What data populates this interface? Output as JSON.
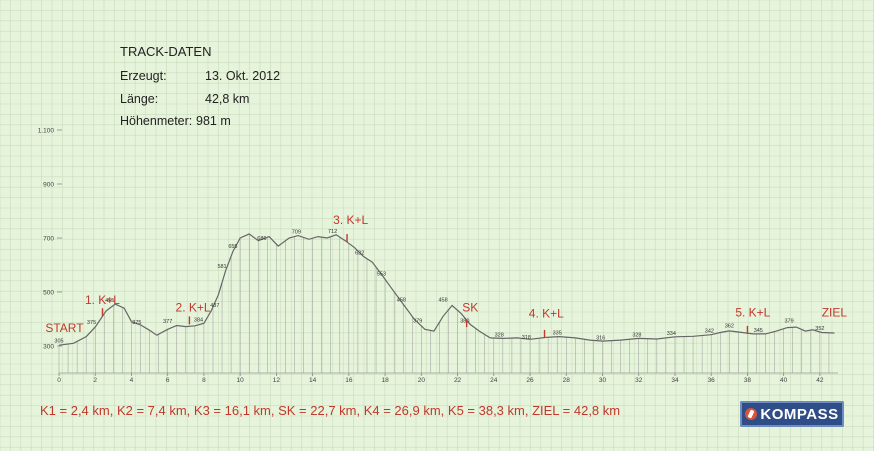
{
  "track_info": {
    "title": "TRACK-DATEN",
    "rows": [
      {
        "label": "Erzeugt:",
        "value": "13. Okt. 2012"
      },
      {
        "label": "Länge:",
        "value": "42,8 km"
      },
      {
        "label": "Höhenmeter:",
        "value": "981 m"
      }
    ]
  },
  "footer_text": "K1 = 2,4 km,   K2 = 7,4 km,   K3 = 16,1 km,   SK = 22,7 km,   K4 = 26,9 km,   K5 = 38,3 km,   ZIEL = 42,8 km",
  "logo_text": "KOMPASS",
  "colors": {
    "background": "#e6f4dc",
    "grid": "#c9dcbc",
    "profile": "#666666",
    "fill_lines": "#999999",
    "markers": "#c0392b"
  },
  "chart_data": {
    "type": "area",
    "x_unit": "km",
    "xlim": [
      0,
      43
    ],
    "ylim": [
      200,
      1100
    ],
    "y_ticks": [
      300,
      500,
      700,
      900,
      1100
    ],
    "y_tick_labels": [
      "300",
      "500",
      "700",
      "900",
      "1.100"
    ],
    "x_ticks": [
      0,
      2,
      4,
      6,
      8,
      10,
      12,
      14,
      16,
      18,
      20,
      22,
      24,
      26,
      28,
      30,
      32,
      34,
      36,
      38,
      40,
      42
    ],
    "profile": [
      {
        "x": 0,
        "y": 303
      },
      {
        "x": 0.8,
        "y": 310
      },
      {
        "x": 1.5,
        "y": 335
      },
      {
        "x": 2.0,
        "y": 370
      },
      {
        "x": 2.6,
        "y": 430
      },
      {
        "x": 3.1,
        "y": 455
      },
      {
        "x": 3.6,
        "y": 440
      },
      {
        "x": 4.0,
        "y": 390
      },
      {
        "x": 4.5,
        "y": 378
      },
      {
        "x": 5.0,
        "y": 358
      },
      {
        "x": 5.4,
        "y": 340
      },
      {
        "x": 6.0,
        "y": 362
      },
      {
        "x": 6.5,
        "y": 376
      },
      {
        "x": 7.0,
        "y": 372
      },
      {
        "x": 7.5,
        "y": 375
      },
      {
        "x": 8.0,
        "y": 384
      },
      {
        "x": 8.4,
        "y": 430
      },
      {
        "x": 8.8,
        "y": 490
      },
      {
        "x": 9.2,
        "y": 580
      },
      {
        "x": 9.6,
        "y": 650
      },
      {
        "x": 10.0,
        "y": 700
      },
      {
        "x": 10.5,
        "y": 715
      },
      {
        "x": 11.0,
        "y": 690
      },
      {
        "x": 11.6,
        "y": 705
      },
      {
        "x": 12.1,
        "y": 670
      },
      {
        "x": 12.7,
        "y": 700
      },
      {
        "x": 13.2,
        "y": 709
      },
      {
        "x": 13.8,
        "y": 695
      },
      {
        "x": 14.3,
        "y": 705
      },
      {
        "x": 14.8,
        "y": 700
      },
      {
        "x": 15.3,
        "y": 712
      },
      {
        "x": 15.8,
        "y": 690
      },
      {
        "x": 16.3,
        "y": 665
      },
      {
        "x": 16.8,
        "y": 632
      },
      {
        "x": 17.3,
        "y": 610
      },
      {
        "x": 17.8,
        "y": 565
      },
      {
        "x": 18.4,
        "y": 510
      },
      {
        "x": 19.0,
        "y": 455
      },
      {
        "x": 19.6,
        "y": 400
      },
      {
        "x": 20.2,
        "y": 362
      },
      {
        "x": 20.7,
        "y": 355
      },
      {
        "x": 21.2,
        "y": 410
      },
      {
        "x": 21.7,
        "y": 450
      },
      {
        "x": 22.2,
        "y": 420
      },
      {
        "x": 22.7,
        "y": 380
      },
      {
        "x": 23.2,
        "y": 355
      },
      {
        "x": 23.8,
        "y": 330
      },
      {
        "x": 24.5,
        "y": 328
      },
      {
        "x": 25.3,
        "y": 330
      },
      {
        "x": 26.0,
        "y": 325
      },
      {
        "x": 26.9,
        "y": 332
      },
      {
        "x": 27.6,
        "y": 335
      },
      {
        "x": 28.5,
        "y": 330
      },
      {
        "x": 29.3,
        "y": 322
      },
      {
        "x": 30.0,
        "y": 318
      },
      {
        "x": 31.0,
        "y": 322
      },
      {
        "x": 32.0,
        "y": 328
      },
      {
        "x": 33.0,
        "y": 326
      },
      {
        "x": 34.0,
        "y": 334
      },
      {
        "x": 35.0,
        "y": 336
      },
      {
        "x": 36.0,
        "y": 342
      },
      {
        "x": 36.5,
        "y": 350
      },
      {
        "x": 37.0,
        "y": 356
      },
      {
        "x": 37.5,
        "y": 352
      },
      {
        "x": 38.3,
        "y": 345
      },
      {
        "x": 39.0,
        "y": 345
      },
      {
        "x": 39.6,
        "y": 355
      },
      {
        "x": 40.2,
        "y": 368
      },
      {
        "x": 40.7,
        "y": 370
      },
      {
        "x": 41.2,
        "y": 355
      },
      {
        "x": 41.6,
        "y": 360
      },
      {
        "x": 42.1,
        "y": 350
      },
      {
        "x": 42.8,
        "y": 348
      }
    ],
    "point_labels": [
      {
        "x": 0,
        "y": 305,
        "label": "305"
      },
      {
        "x": 1.8,
        "y": 375,
        "label": "375"
      },
      {
        "x": 2.8,
        "y": 455,
        "label": "455"
      },
      {
        "x": 4.3,
        "y": 375,
        "label": "375"
      },
      {
        "x": 6.0,
        "y": 377,
        "label": "377"
      },
      {
        "x": 7.7,
        "y": 384,
        "label": "384"
      },
      {
        "x": 8.6,
        "y": 437,
        "label": "437"
      },
      {
        "x": 9.0,
        "y": 581,
        "label": "581"
      },
      {
        "x": 9.6,
        "y": 655,
        "label": "655"
      },
      {
        "x": 11.2,
        "y": 686,
        "label": "686"
      },
      {
        "x": 13.1,
        "y": 709,
        "label": "709"
      },
      {
        "x": 15.1,
        "y": 712,
        "label": "712"
      },
      {
        "x": 16.6,
        "y": 632,
        "label": "632"
      },
      {
        "x": 17.8,
        "y": 553,
        "label": "553"
      },
      {
        "x": 18.9,
        "y": 458,
        "label": "458"
      },
      {
        "x": 19.8,
        "y": 379,
        "label": "379"
      },
      {
        "x": 21.2,
        "y": 458,
        "label": "458"
      },
      {
        "x": 22.4,
        "y": 380,
        "label": "380"
      },
      {
        "x": 24.3,
        "y": 328,
        "label": "328"
      },
      {
        "x": 25.8,
        "y": 318,
        "label": "318"
      },
      {
        "x": 27.5,
        "y": 335,
        "label": "335"
      },
      {
        "x": 29.9,
        "y": 316,
        "label": "316"
      },
      {
        "x": 31.9,
        "y": 328,
        "label": "328"
      },
      {
        "x": 33.8,
        "y": 334,
        "label": "334"
      },
      {
        "x": 35.9,
        "y": 342,
        "label": "342"
      },
      {
        "x": 37.0,
        "y": 362,
        "label": "362"
      },
      {
        "x": 38.6,
        "y": 345,
        "label": "345"
      },
      {
        "x": 40.3,
        "y": 379,
        "label": "379"
      },
      {
        "x": 42.0,
        "y": 352,
        "label": "352"
      }
    ],
    "annotations": [
      {
        "text": "START",
        "x": 0.3,
        "y": 352
      },
      {
        "text": "1. K+L",
        "x": 2.4,
        "y": 455,
        "marker_x": 2.4,
        "marker_y": 410
      },
      {
        "text": "2. K+L",
        "x": 7.4,
        "y": 428,
        "marker_x": 7.2,
        "marker_y": 380
      },
      {
        "text": "3. K+L",
        "x": 16.1,
        "y": 752,
        "marker_x": 15.9,
        "marker_y": 685
      },
      {
        "text": "SK",
        "x": 22.7,
        "y": 428,
        "marker_x": 22.5,
        "marker_y": 370
      },
      {
        "text": "4. K+L",
        "x": 26.9,
        "y": 405,
        "marker_x": 26.8,
        "marker_y": 330
      },
      {
        "text": "5. K+L",
        "x": 38.3,
        "y": 410,
        "marker_x": 38.0,
        "marker_y": 345
      },
      {
        "text": "ZIEL",
        "x": 42.8,
        "y": 410
      }
    ]
  }
}
